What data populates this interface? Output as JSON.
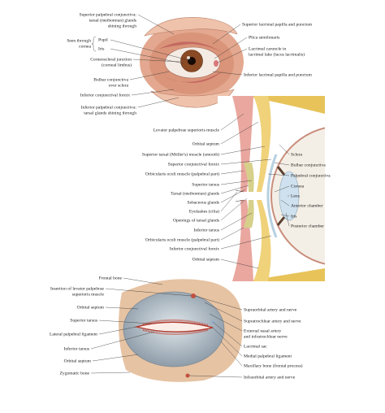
{
  "eye_photo": {
    "left_labels": [
      [
        "Superior palpebral conjunctiva:",
        "tarsal (meibomian) glands",
        "shining through"
      ],
      [
        "Corneoscleral junction",
        "(corneal limbus)"
      ],
      [
        "Bulbar conjunctiva",
        "over sclera"
      ],
      [
        "Inferior conjunctival fornix"
      ],
      [
        "Inferior palpebral conjunctiva:",
        "tarsal glands shining through"
      ]
    ],
    "seen_through": {
      "text": [
        "Seen through",
        "cornea"
      ],
      "items": [
        "Pupil",
        "Iris"
      ]
    },
    "right_labels": [
      [
        "Superior lacrimal papilla and punctum"
      ],
      [
        "Plica semilunaris"
      ],
      [
        "Lacrimal caruncle in",
        "lacrimal lake (lacus lacrimalis)"
      ],
      [
        "Inferior lacrimal papilla and punctum"
      ]
    ]
  },
  "sagittal_section": {
    "left_labels": [
      [
        "Levator palpebrae superioris muscle"
      ],
      [
        "Orbital septum"
      ],
      [
        "Superior tarsal (Müller's) muscle (smooth)"
      ],
      [
        "Superior conjunctival fornix"
      ],
      [
        "Orbicularis oculi muscle (palpebral part)"
      ],
      [
        "Superior tarsus"
      ],
      [
        "Tarsal (meibomian) glands"
      ],
      [
        "Sebaceous glands"
      ],
      [
        "Eyelashes (cilia)"
      ],
      [
        "Openings of tarsal glands"
      ],
      [
        "Inferior tarsus"
      ],
      [
        "Orbicularis oculi muscle (palpebral part)"
      ],
      [
        "Inferior conjunctival fornix"
      ],
      [
        "Orbital septum"
      ]
    ],
    "right_labels": [
      [
        "Sclera"
      ],
      [
        "Bulbar conjunctiva"
      ],
      [
        "Palpebral conjunctiva"
      ],
      [
        "Cornea"
      ],
      [
        "Lens"
      ],
      [
        "Anterior chamber"
      ],
      [
        "Iris"
      ],
      [
        "Posterior chamber"
      ]
    ]
  },
  "eyelid_dissection": {
    "left_labels": [
      [
        "Frontal bone"
      ],
      [
        "Insertion of levator palpebrae",
        "superioris muscle"
      ],
      [
        "Orbital septum"
      ],
      [
        "Superior tarsus"
      ],
      [
        "Lateral palpebral ligament"
      ],
      [
        "Inferior tarsus"
      ],
      [
        "Orbital septum"
      ],
      [
        "Zygomatic bone"
      ]
    ],
    "right_labels": [
      [
        "Supraorbital artery and nerve"
      ],
      [
        "Supratrochlear artery and nerve"
      ],
      [
        "External nasal artery",
        "and infratrochlear nerve"
      ],
      [
        "Lacrimal sac"
      ],
      [
        "Medial palpebral ligament"
      ],
      [
        "Maxillary bone (frontal process)"
      ],
      [
        "Infraorbital artery and nerve"
      ]
    ]
  }
}
